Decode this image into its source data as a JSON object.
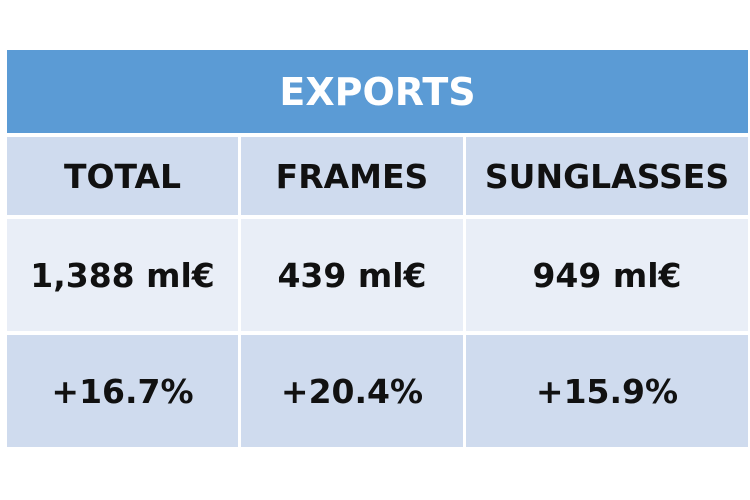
{
  "header": {
    "title": "EXPORTS"
  },
  "table": {
    "columns": [
      "TOTAL",
      "FRAMES",
      "SUNGLASSES"
    ],
    "rows": [
      [
        "1,388 ml€",
        "439 ml€",
        "949 ml€"
      ],
      [
        "+16.7%",
        "+20.4%",
        "+15.9%"
      ]
    ]
  }
}
